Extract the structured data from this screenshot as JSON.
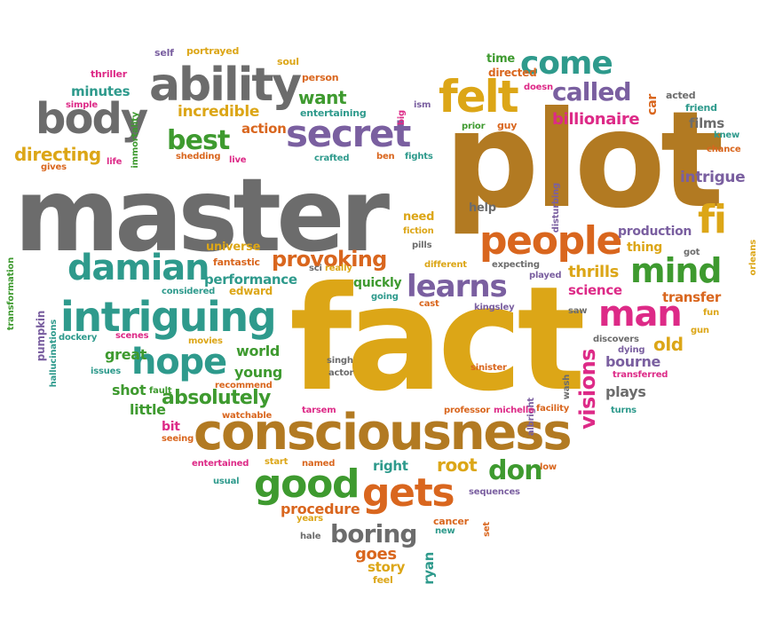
{
  "palette": {
    "orange": "#d9661e",
    "green": "#3e9a2f",
    "gold": "#dca617",
    "purple": "#7a5fa0",
    "gray": "#6c6c6c",
    "magenta": "#dd2a87",
    "teal": "#2e9a8c",
    "brown": "#b27a22"
  },
  "words": [
    {
      "text": "master",
      "color": "gray"
    },
    {
      "text": "plot",
      "color": "brown"
    },
    {
      "text": "fact",
      "color": "gold"
    },
    {
      "text": "consciousness",
      "color": "brown"
    },
    {
      "text": "intriguing",
      "color": "teal"
    },
    {
      "text": "ability",
      "color": "gray"
    },
    {
      "text": "people",
      "color": "orange"
    },
    {
      "text": "secret",
      "color": "purple"
    },
    {
      "text": "body",
      "color": "gray"
    },
    {
      "text": "felt",
      "color": "gold"
    },
    {
      "text": "come",
      "color": "teal"
    },
    {
      "text": "hope",
      "color": "teal"
    },
    {
      "text": "damian",
      "color": "teal"
    },
    {
      "text": "good",
      "color": "green"
    },
    {
      "text": "gets",
      "color": "orange"
    },
    {
      "text": "man",
      "color": "magenta"
    },
    {
      "text": "mind",
      "color": "green"
    },
    {
      "text": "learns",
      "color": "purple"
    },
    {
      "text": "fi",
      "color": "gold"
    },
    {
      "text": "called",
      "color": "purple"
    },
    {
      "text": "boring",
      "color": "gray"
    },
    {
      "text": "provoking",
      "color": "orange"
    },
    {
      "text": "best",
      "color": "green"
    },
    {
      "text": "absolutely",
      "color": "green"
    },
    {
      "text": "don",
      "color": "green"
    },
    {
      "text": "visions",
      "color": "magenta"
    },
    {
      "text": "billionaire",
      "color": "magenta"
    },
    {
      "text": "incredible",
      "color": "gold"
    },
    {
      "text": "directing",
      "color": "gold"
    },
    {
      "text": "want",
      "color": "green"
    },
    {
      "text": "intrigue",
      "color": "purple"
    },
    {
      "text": "thrills",
      "color": "gold"
    },
    {
      "text": "root",
      "color": "gold"
    },
    {
      "text": "procedure",
      "color": "orange"
    },
    {
      "text": "goes",
      "color": "orange"
    },
    {
      "text": "minutes",
      "color": "teal"
    },
    {
      "text": "action",
      "color": "orange"
    },
    {
      "text": "performance",
      "color": "teal"
    },
    {
      "text": "great",
      "color": "green"
    },
    {
      "text": "world",
      "color": "green"
    },
    {
      "text": "young",
      "color": "green"
    },
    {
      "text": "shot",
      "color": "green"
    },
    {
      "text": "little",
      "color": "green"
    },
    {
      "text": "old",
      "color": "gold"
    },
    {
      "text": "bourne",
      "color": "purple"
    },
    {
      "text": "plays",
      "color": "gray"
    },
    {
      "text": "science",
      "color": "magenta"
    },
    {
      "text": "transfer",
      "color": "orange"
    },
    {
      "text": "production",
      "color": "purple"
    },
    {
      "text": "films",
      "color": "gray"
    },
    {
      "text": "quickly",
      "color": "green"
    },
    {
      "text": "universe",
      "color": "gold"
    },
    {
      "text": "fantastic",
      "color": "orange"
    },
    {
      "text": "right",
      "color": "teal"
    },
    {
      "text": "story",
      "color": "gold"
    },
    {
      "text": "ryan",
      "color": "teal"
    },
    {
      "text": "edward",
      "color": "gold"
    },
    {
      "text": "bit",
      "color": "magenta"
    },
    {
      "text": "thing",
      "color": "gold"
    },
    {
      "text": "need",
      "color": "gold"
    },
    {
      "text": "help",
      "color": "gray"
    },
    {
      "text": "portrayed",
      "color": "gold"
    },
    {
      "text": "self",
      "color": "purple"
    },
    {
      "text": "thriller",
      "color": "magenta"
    },
    {
      "text": "immortality",
      "color": "green"
    },
    {
      "text": "soul",
      "color": "gold"
    },
    {
      "text": "person",
      "color": "orange"
    },
    {
      "text": "time",
      "color": "green"
    },
    {
      "text": "directed",
      "color": "orange"
    },
    {
      "text": "car",
      "color": "orange"
    },
    {
      "text": "acted",
      "color": "gray"
    },
    {
      "text": "doesn",
      "color": "magenta"
    },
    {
      "text": "friend",
      "color": "teal"
    },
    {
      "text": "got",
      "color": "gray"
    },
    {
      "text": "simple",
      "color": "magenta"
    },
    {
      "text": "entertaining",
      "color": "teal"
    },
    {
      "text": "big",
      "color": "magenta"
    },
    {
      "text": "ism",
      "color": "purple"
    },
    {
      "text": "prior",
      "color": "green"
    },
    {
      "text": "guy",
      "color": "orange"
    },
    {
      "text": "knew",
      "color": "teal"
    },
    {
      "text": "chance",
      "color": "orange"
    },
    {
      "text": "life",
      "color": "magenta"
    },
    {
      "text": "gives",
      "color": "orange"
    },
    {
      "text": "shedding",
      "color": "orange"
    },
    {
      "text": "live",
      "color": "magenta"
    },
    {
      "text": "crafted",
      "color": "teal"
    },
    {
      "text": "ben",
      "color": "orange"
    },
    {
      "text": "fights",
      "color": "teal"
    },
    {
      "text": "disturbing",
      "color": "purple"
    },
    {
      "text": "transformation",
      "color": "green"
    },
    {
      "text": "orleans",
      "color": "gold"
    },
    {
      "text": "fiction",
      "color": "gold"
    },
    {
      "text": "pills",
      "color": "gray"
    },
    {
      "text": "pumpkin",
      "color": "purple"
    },
    {
      "text": "hallucinations",
      "color": "teal"
    },
    {
      "text": "sci",
      "color": "gray"
    },
    {
      "text": "really",
      "color": "gold"
    },
    {
      "text": "different",
      "color": "gold"
    },
    {
      "text": "expecting",
      "color": "gray"
    },
    {
      "text": "played",
      "color": "purple"
    },
    {
      "text": "considered",
      "color": "teal"
    },
    {
      "text": "going",
      "color": "teal"
    },
    {
      "text": "cast",
      "color": "orange"
    },
    {
      "text": "kingsley",
      "color": "purple"
    },
    {
      "text": "saw",
      "color": "gray"
    },
    {
      "text": "fun",
      "color": "gold"
    },
    {
      "text": "gun",
      "color": "gold"
    },
    {
      "text": "dockery",
      "color": "teal"
    },
    {
      "text": "scenes",
      "color": "magenta"
    },
    {
      "text": "movies",
      "color": "gold"
    },
    {
      "text": "discovers",
      "color": "gray"
    },
    {
      "text": "dying",
      "color": "purple"
    },
    {
      "text": "issues",
      "color": "teal"
    },
    {
      "text": "singh",
      "color": "gray"
    },
    {
      "text": "actor",
      "color": "gray"
    },
    {
      "text": "sinister",
      "color": "orange"
    },
    {
      "text": "albright",
      "color": "purple"
    },
    {
      "text": "wash",
      "color": "gray"
    },
    {
      "text": "transferred",
      "color": "magenta"
    },
    {
      "text": "fault",
      "color": "green"
    },
    {
      "text": "recommend",
      "color": "orange"
    },
    {
      "text": "tarsem",
      "color": "magenta"
    },
    {
      "text": "professor",
      "color": "orange"
    },
    {
      "text": "michelle",
      "color": "magenta"
    },
    {
      "text": "facility",
      "color": "orange"
    },
    {
      "text": "turns",
      "color": "teal"
    },
    {
      "text": "watchable",
      "color": "orange"
    },
    {
      "text": "seeing",
      "color": "orange"
    },
    {
      "text": "entertained",
      "color": "magenta"
    },
    {
      "text": "start",
      "color": "gold"
    },
    {
      "text": "named",
      "color": "orange"
    },
    {
      "text": "low",
      "color": "orange"
    },
    {
      "text": "usual",
      "color": "teal"
    },
    {
      "text": "sequences",
      "color": "purple"
    },
    {
      "text": "years",
      "color": "gold"
    },
    {
      "text": "cancer",
      "color": "orange"
    },
    {
      "text": "set",
      "color": "orange"
    },
    {
      "text": "new",
      "color": "teal"
    },
    {
      "text": "hale",
      "color": "gray"
    },
    {
      "text": "feel",
      "color": "gold"
    }
  ]
}
